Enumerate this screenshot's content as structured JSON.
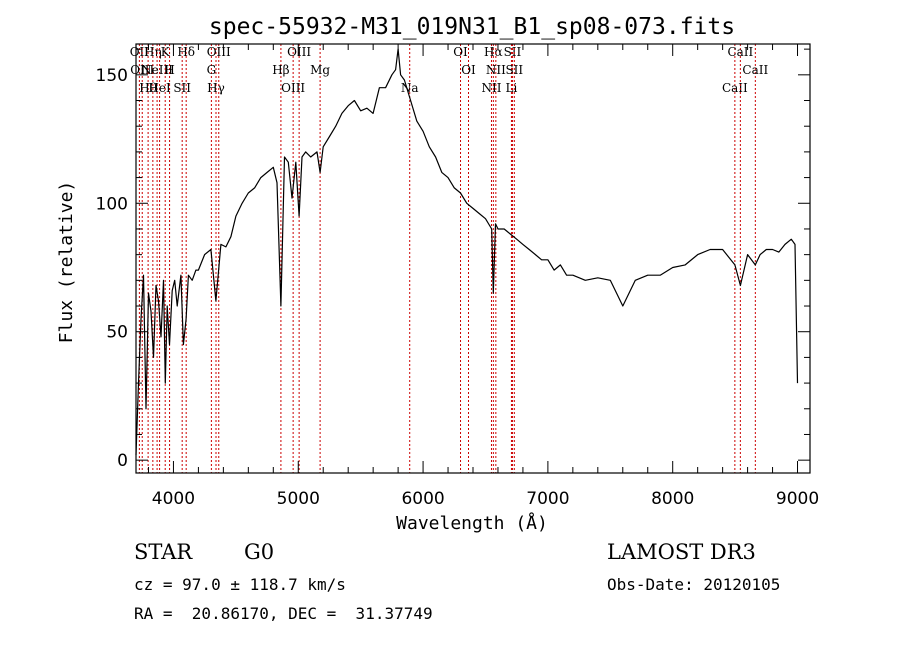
{
  "chart_data": {
    "type": "line",
    "title": "spec-55932-M31_019N31_B1_sp08-073.fits",
    "xlabel": "Wavelength (Å)",
    "ylabel": "Flux (relative)",
    "xlim": [
      3700,
      9100
    ],
    "ylim": [
      -5,
      162
    ],
    "x_ticks": [
      4000,
      5000,
      6000,
      7000,
      8000,
      9000
    ],
    "y_ticks": [
      0,
      50,
      100,
      150
    ],
    "x_tick_labels": [
      "4000",
      "5000",
      "6000",
      "7000",
      "8000",
      "9000"
    ],
    "y_tick_labels": [
      "0",
      "50",
      "100",
      "150"
    ],
    "series": [
      {
        "color": "#000000",
        "x": [
          3700,
          3720,
          3740,
          3760,
          3780,
          3800,
          3820,
          3840,
          3860,
          3880,
          3900,
          3920,
          3935,
          3950,
          3968,
          3990,
          4010,
          4030,
          4060,
          4080,
          4101,
          4120,
          4150,
          4180,
          4200,
          4250,
          4300,
          4340,
          4380,
          4420,
          4460,
          4500,
          4550,
          4600,
          4650,
          4700,
          4750,
          4800,
          4830,
          4861,
          4890,
          4920,
          4950,
          4980,
          5007,
          5030,
          5060,
          5100,
          5150,
          5175,
          5200,
          5250,
          5300,
          5350,
          5400,
          5450,
          5500,
          5550,
          5600,
          5650,
          5700,
          5750,
          5780,
          5800,
          5820,
          5850,
          5900,
          5950,
          6000,
          6050,
          6100,
          6150,
          6200,
          6250,
          6300,
          6350,
          6400,
          6450,
          6500,
          6550,
          6563,
          6580,
          6600,
          6650,
          6700,
          6750,
          6800,
          6850,
          6900,
          6950,
          7000,
          7050,
          7100,
          7150,
          7200,
          7300,
          7400,
          7500,
          7600,
          7700,
          7800,
          7900,
          8000,
          8100,
          8200,
          8300,
          8400,
          8498,
          8542,
          8600,
          8662,
          8700,
          8750,
          8800,
          8850,
          8900,
          8950,
          8980,
          9000
        ],
        "y": [
          2,
          30,
          55,
          72,
          20,
          65,
          58,
          40,
          68,
          62,
          48,
          70,
          30,
          60,
          45,
          66,
          70,
          60,
          72,
          45,
          55,
          72,
          70,
          74,
          74,
          80,
          82,
          62,
          84,
          83,
          87,
          95,
          100,
          104,
          106,
          110,
          112,
          114,
          108,
          60,
          118,
          116,
          102,
          116,
          95,
          118,
          120,
          118,
          120,
          112,
          122,
          126,
          130,
          135,
          138,
          140,
          136,
          137,
          135,
          145,
          145,
          150,
          152,
          160,
          150,
          148,
          140,
          132,
          128,
          122,
          118,
          112,
          110,
          106,
          104,
          100,
          98,
          96,
          94,
          90,
          65,
          92,
          90,
          90,
          88,
          86,
          84,
          82,
          80,
          78,
          78,
          74,
          76,
          72,
          72,
          70,
          71,
          70,
          60,
          70,
          72,
          72,
          75,
          76,
          80,
          82,
          82,
          76,
          68,
          80,
          76,
          80,
          82,
          82,
          81,
          84,
          86,
          84,
          30
        ]
      }
    ],
    "lines": [
      {
        "wl": 3727,
        "text": "OII"
      },
      {
        "wl": 3750,
        "text": "OIII"
      },
      {
        "wl": 3797,
        "text": "Hθ"
      },
      {
        "wl": 3835,
        "text": "Hη"
      },
      {
        "wl": 3869,
        "text": "NeIII"
      },
      {
        "wl": 3889,
        "text": "HeI"
      },
      {
        "wl": 3934,
        "text": "K"
      },
      {
        "wl": 3969,
        "text": "H"
      },
      {
        "wl": 4070,
        "text": "SII"
      },
      {
        "wl": 4102,
        "text": "Hδ"
      },
      {
        "wl": 4304,
        "text": "G"
      },
      {
        "wl": 4341,
        "text": "Hγ"
      },
      {
        "wl": 4363,
        "text": "OIII"
      },
      {
        "wl": 4861,
        "text": "Hβ"
      },
      {
        "wl": 4959,
        "text": "OIII"
      },
      {
        "wl": 5007,
        "text": "OIII"
      },
      {
        "wl": 5175,
        "text": "Mg"
      },
      {
        "wl": 5893,
        "text": "Na"
      },
      {
        "wl": 6300,
        "text": "OI"
      },
      {
        "wl": 6364,
        "text": "OI"
      },
      {
        "wl": 6548,
        "text": "NII"
      },
      {
        "wl": 6563,
        "text": "Hα"
      },
      {
        "wl": 6583,
        "text": "NII"
      },
      {
        "wl": 6708,
        "text": "Li"
      },
      {
        "wl": 6716,
        "text": "SII"
      },
      {
        "wl": 6731,
        "text": "SII"
      },
      {
        "wl": 8498,
        "text": "CaII"
      },
      {
        "wl": 8542,
        "text": "CaII"
      },
      {
        "wl": 8662,
        "text": "CaII"
      }
    ],
    "line_color": "#cc0000",
    "grid": false
  },
  "info": {
    "class_label": "STAR",
    "subclass": "G0",
    "survey": "LAMOST DR3",
    "cz": "cz = 97.0 ± 118.7 km/s",
    "obs_date": "Obs-Date: 20120105",
    "radec": "RA =  20.86170, DEC =  31.37749"
  }
}
